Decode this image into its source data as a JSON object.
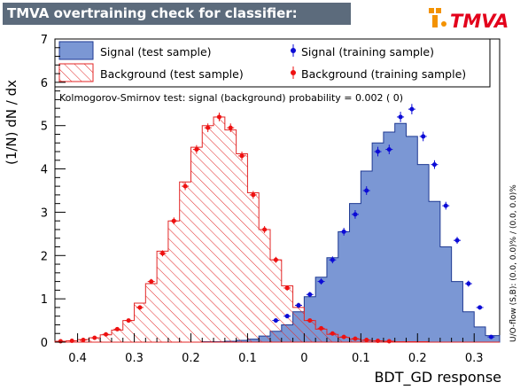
{
  "window": {
    "title": "TMVA overtraining check for classifier: BDT_GD",
    "logo_text": "TMVA"
  },
  "colors": {
    "title_bg": "#5c6b7c",
    "signal_fill": "#7b97d4",
    "signal_line": "#1f3a93",
    "signal_points": "#0b0bd6",
    "background_hatch": "#e32626",
    "background_points": "#ee1111",
    "logo_orange": "#f39200",
    "logo_red": "#e3001b"
  },
  "chart_data": {
    "type": "histogram",
    "xlabel": "BDT_GD response",
    "ylabel": "(1/N) dN / dx",
    "xlim": [
      -0.44,
      0.345
    ],
    "ylim": [
      0,
      7
    ],
    "x_ticks": [
      -0.4,
      -0.3,
      -0.2,
      -0.1,
      0,
      0.1,
      0.2,
      0.3
    ],
    "x_tick_labels": [
      "0.4",
      "0.3",
      "0.2",
      "0.1",
      "0",
      "0.1",
      "0.2",
      "0.3"
    ],
    "y_ticks": [
      0,
      1,
      2,
      3,
      4,
      5,
      6,
      7
    ],
    "bin_edges": [
      -0.44,
      -0.42,
      -0.4,
      -0.38,
      -0.36,
      -0.34,
      -0.32,
      -0.3,
      -0.28,
      -0.26,
      -0.24,
      -0.22,
      -0.2,
      -0.18,
      -0.16,
      -0.14,
      -0.12,
      -0.1,
      -0.08,
      -0.06,
      -0.04,
      -0.02,
      0.0,
      0.02,
      0.04,
      0.06,
      0.08,
      0.1,
      0.12,
      0.14,
      0.16,
      0.18,
      0.2,
      0.22,
      0.24,
      0.26,
      0.28,
      0.3,
      0.32,
      0.345
    ],
    "legend": {
      "signal_test": "Signal (test sample)",
      "background_test": "Background (test sample)",
      "signal_train": "Signal (training sample)",
      "background_train": "Background (training sample)"
    },
    "ks_text": "Kolmogorov-Smirnov test: signal (background) probability = 0.002 (    0)",
    "overflow_text": "U/O-flow (S,B): (0.0, 0.0)% / (0.0, 0.0)%",
    "series": [
      {
        "name": "Signal (test sample)",
        "style": "filled-histogram",
        "values": [
          0,
          0,
          0,
          0,
          0,
          0,
          0,
          0,
          0,
          0,
          0,
          0,
          0,
          0.01,
          0.01,
          0.02,
          0.04,
          0.07,
          0.14,
          0.25,
          0.4,
          0.7,
          1.05,
          1.5,
          1.95,
          2.55,
          3.2,
          3.95,
          4.6,
          4.85,
          5.05,
          4.75,
          4.1,
          3.25,
          2.2,
          1.4,
          0.7,
          0.35,
          0.15
        ]
      },
      {
        "name": "Background (test sample)",
        "style": "hatched-histogram",
        "values": [
          0.02,
          0.03,
          0.06,
          0.1,
          0.17,
          0.28,
          0.5,
          0.9,
          1.35,
          2.1,
          2.8,
          3.7,
          4.5,
          5.0,
          5.2,
          4.9,
          4.35,
          3.45,
          2.6,
          1.9,
          1.3,
          0.8,
          0.5,
          0.3,
          0.18,
          0.11,
          0.07,
          0.04,
          0.03,
          0.02,
          0.01,
          0.01,
          0.01,
          0,
          0,
          0,
          0,
          0,
          0
        ]
      },
      {
        "name": "Signal (training sample)",
        "style": "points",
        "x": [
          -0.05,
          -0.03,
          -0.01,
          0.01,
          0.03,
          0.05,
          0.07,
          0.09,
          0.11,
          0.13,
          0.15,
          0.17,
          0.19,
          0.21,
          0.23,
          0.25,
          0.27,
          0.29,
          0.31,
          0.33
        ],
        "y": [
          0.5,
          0.6,
          0.85,
          1.1,
          1.4,
          1.9,
          2.55,
          2.95,
          3.5,
          4.4,
          4.45,
          5.2,
          5.38,
          4.75,
          4.1,
          3.15,
          2.35,
          1.35,
          0.8,
          0.12
        ],
        "errors": [
          0.05,
          0.05,
          0.06,
          0.06,
          0.07,
          0.08,
          0.09,
          0.1,
          0.1,
          0.11,
          0.11,
          0.12,
          0.12,
          0.11,
          0.1,
          0.09,
          0.08,
          0.07,
          0.05,
          0.03
        ]
      },
      {
        "name": "Background (training sample)",
        "style": "points",
        "x": [
          -0.43,
          -0.41,
          -0.39,
          -0.37,
          -0.35,
          -0.33,
          -0.31,
          -0.29,
          -0.27,
          -0.25,
          -0.23,
          -0.21,
          -0.19,
          -0.17,
          -0.15,
          -0.13,
          -0.11,
          -0.09,
          -0.07,
          -0.05,
          -0.03,
          -0.01,
          0.01,
          0.03,
          0.05,
          0.07,
          0.09,
          0.11,
          0.13,
          0.15
        ],
        "y": [
          0.02,
          0.03,
          0.05,
          0.1,
          0.18,
          0.3,
          0.5,
          0.8,
          1.4,
          2.05,
          2.8,
          3.6,
          4.45,
          4.95,
          5.2,
          4.95,
          4.3,
          3.4,
          2.6,
          1.9,
          1.25,
          0.85,
          0.5,
          0.32,
          0.2,
          0.12,
          0.08,
          0.05,
          0.03,
          0.02
        ],
        "errors": [
          0.01,
          0.01,
          0.01,
          0.02,
          0.02,
          0.03,
          0.04,
          0.05,
          0.06,
          0.07,
          0.08,
          0.09,
          0.1,
          0.1,
          0.1,
          0.1,
          0.1,
          0.09,
          0.08,
          0.07,
          0.06,
          0.05,
          0.04,
          0.03,
          0.02,
          0.02,
          0.01,
          0.01,
          0.01,
          0.01
        ]
      }
    ]
  }
}
